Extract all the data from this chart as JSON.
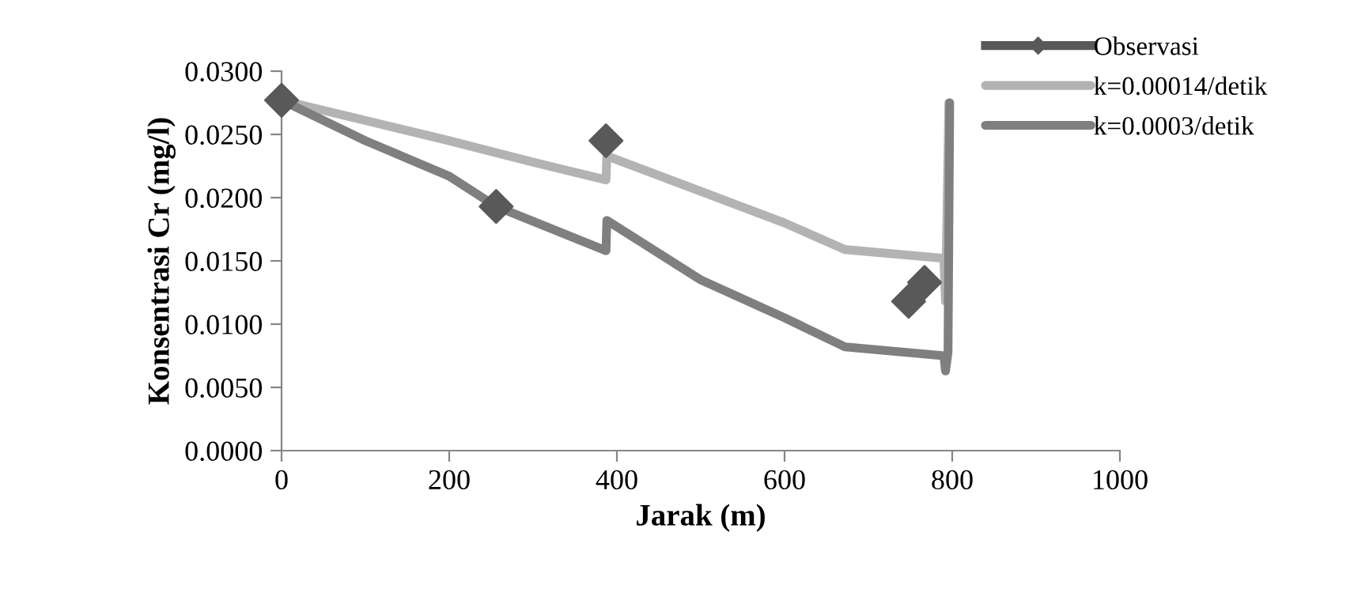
{
  "chart_data": {
    "type": "line",
    "xlabel": "Jarak (m)",
    "ylabel": "Konsentrasi Cr (mg/l)",
    "xlim": [
      0,
      1000
    ],
    "xticks": [
      0,
      200,
      400,
      600,
      800,
      1000
    ],
    "ylim": [
      0,
      0.03
    ],
    "yticks": [
      {
        "value": 0,
        "label": "0.0000"
      },
      {
        "value": 0.005,
        "label": "0.0050"
      },
      {
        "value": 0.01,
        "label": "0.0100"
      },
      {
        "value": 0.015,
        "label": "0.0150"
      },
      {
        "value": 0.02,
        "label": "0.0200"
      },
      {
        "value": 0.025,
        "label": "0.0250"
      },
      {
        "value": 0.03,
        "label": "0.0300"
      }
    ],
    "grid": false,
    "legend": "right",
    "series": [
      {
        "name": "Observasi",
        "type": "scatter",
        "marker": "diamond",
        "color": "#595959",
        "x": [
          0,
          256,
          387,
          748,
          767
        ],
        "values": [
          0.0277,
          0.0193,
          0.0245,
          0.0118,
          0.0133
        ]
      },
      {
        "name": "k=0.00014/detik",
        "color": "#b3b3b3",
        "x": [
          0,
          100,
          200,
          300,
          387,
          388,
          500,
          600,
          672,
          790,
          792,
          796
        ],
        "values": [
          0.0277,
          0.0261,
          0.0245,
          0.0228,
          0.0214,
          0.0233,
          0.0205,
          0.018,
          0.0159,
          0.0152,
          0.0118,
          0.0275
        ]
      },
      {
        "name": "k=0.0003/detik",
        "color": "#7f7f7f",
        "x": [
          0,
          100,
          200,
          256,
          387,
          388,
          500,
          600,
          672,
          790,
          792,
          795,
          797
        ],
        "values": [
          0.0277,
          0.0245,
          0.0217,
          0.0193,
          0.0158,
          0.0182,
          0.0135,
          0.0105,
          0.0082,
          0.0075,
          0.0063,
          0.0078,
          0.0275
        ]
      }
    ]
  }
}
